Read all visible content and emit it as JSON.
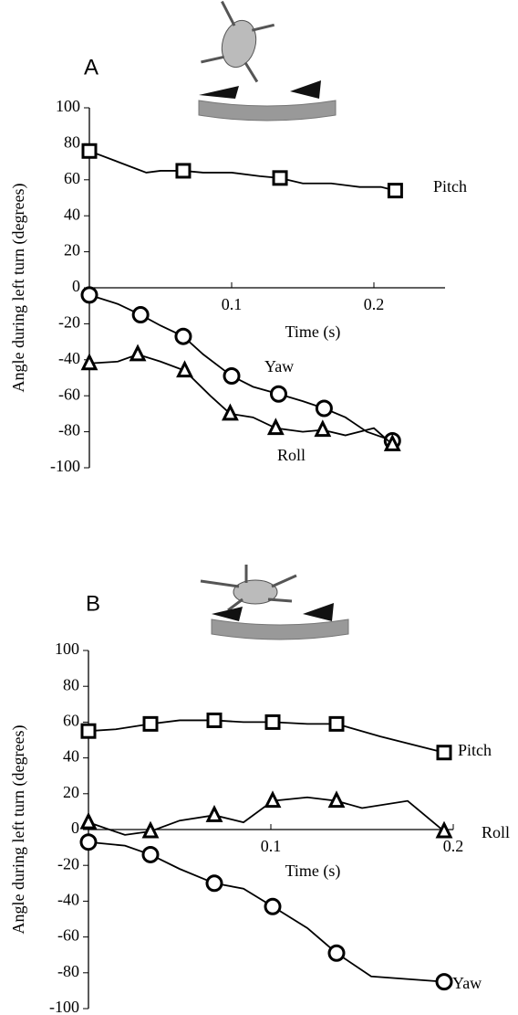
{
  "chart_data": [
    {
      "type": "line",
      "panel_label": "A",
      "x_label": "Time (s)",
      "y_label": "Angle during left turn (degrees)",
      "xlim": [
        0,
        0.25
      ],
      "xticks": [
        0.1,
        0.2
      ],
      "ylim": [
        -100,
        100
      ],
      "yticks": [
        -100,
        -80,
        -60,
        -40,
        -20,
        0,
        20,
        40,
        60,
        80,
        100
      ],
      "series": [
        {
          "name": "Pitch",
          "color": "#000000",
          "marker": "square",
          "x": [
            0,
            0.02,
            0.04,
            0.05,
            0.066,
            0.08,
            0.1,
            0.12,
            0.134,
            0.15,
            0.17,
            0.19,
            0.205,
            0.215
          ],
          "values": [
            76,
            70,
            64,
            65,
            65,
            64,
            64,
            62,
            61,
            58,
            58,
            56,
            56,
            54
          ],
          "markers": {
            "x": [
              0,
              0.066,
              0.134,
              0.215
            ],
            "values": [
              76,
              65,
              61,
              54
            ]
          }
        },
        {
          "name": "Yaw",
          "color": "#000000",
          "marker": "circle",
          "x": [
            0,
            0.02,
            0.036,
            0.05,
            0.066,
            0.08,
            0.1,
            0.115,
            0.133,
            0.15,
            0.165,
            0.18,
            0.195,
            0.213
          ],
          "values": [
            -4,
            -9,
            -15,
            -21,
            -27,
            -37,
            -49,
            -55,
            -59,
            -63,
            -67,
            -72,
            -80,
            -85
          ],
          "markers": {
            "x": [
              0,
              0.036,
              0.066,
              0.1,
              0.133,
              0.165,
              0.213
            ],
            "values": [
              -4,
              -15,
              -27,
              -49,
              -59,
              -67,
              -85
            ]
          }
        },
        {
          "name": "Roll",
          "color": "#000000",
          "marker": "triangle",
          "x": [
            0,
            0.02,
            0.034,
            0.05,
            0.067,
            0.085,
            0.099,
            0.115,
            0.131,
            0.15,
            0.164,
            0.18,
            0.2,
            0.213
          ],
          "values": [
            -42,
            -41,
            -37,
            -41,
            -46,
            -60,
            -70,
            -72,
            -78,
            -80,
            -79,
            -82,
            -78,
            -87
          ],
          "markers": {
            "x": [
              0,
              0.034,
              0.067,
              0.099,
              0.131,
              0.164,
              0.213
            ],
            "values": [
              -42,
              -37,
              -46,
              -70,
              -78,
              -79,
              -87
            ]
          }
        }
      ]
    },
    {
      "type": "line",
      "panel_label": "B",
      "x_label": "Time (s)",
      "y_label": "Angle during left turn (degrees)",
      "xlim": [
        0,
        0.2
      ],
      "xticks": [
        0.1,
        0.2
      ],
      "ylim": [
        -100,
        100
      ],
      "yticks": [
        -100,
        -80,
        -60,
        -40,
        -20,
        0,
        20,
        40,
        60,
        80,
        100
      ],
      "series": [
        {
          "name": "Pitch",
          "color": "#000000",
          "marker": "square",
          "x": [
            0,
            0.015,
            0.034,
            0.05,
            0.069,
            0.085,
            0.101,
            0.12,
            0.136,
            0.16,
            0.195
          ],
          "values": [
            55,
            56,
            59,
            61,
            61,
            60,
            60,
            59,
            59,
            52,
            43
          ],
          "markers": {
            "x": [
              0,
              0.034,
              0.069,
              0.101,
              0.136,
              0.195
            ],
            "values": [
              55,
              59,
              61,
              60,
              59,
              43
            ]
          }
        },
        {
          "name": "Roll",
          "color": "#000000",
          "marker": "triangle",
          "x": [
            0,
            0.02,
            0.034,
            0.05,
            0.069,
            0.085,
            0.101,
            0.12,
            0.136,
            0.15,
            0.175,
            0.195
          ],
          "values": [
            4,
            -3,
            -1,
            5,
            8,
            4,
            16,
            18,
            16,
            12,
            16,
            -1
          ],
          "markers": {
            "x": [
              0,
              0.034,
              0.069,
              0.101,
              0.136,
              0.195
            ],
            "values": [
              4,
              -1,
              8,
              16,
              16,
              -1
            ]
          }
        },
        {
          "name": "Yaw",
          "color": "#000000",
          "marker": "circle",
          "x": [
            0,
            0.02,
            0.034,
            0.05,
            0.069,
            0.085,
            0.101,
            0.12,
            0.136,
            0.155,
            0.195
          ],
          "values": [
            -7,
            -9,
            -14,
            -22,
            -30,
            -33,
            -43,
            -55,
            -69,
            -82,
            -85
          ],
          "markers": {
            "x": [
              0,
              0.034,
              0.069,
              0.101,
              0.136,
              0.195
            ],
            "values": [
              -7,
              -14,
              -30,
              -43,
              -69,
              -85
            ]
          }
        }
      ]
    }
  ]
}
